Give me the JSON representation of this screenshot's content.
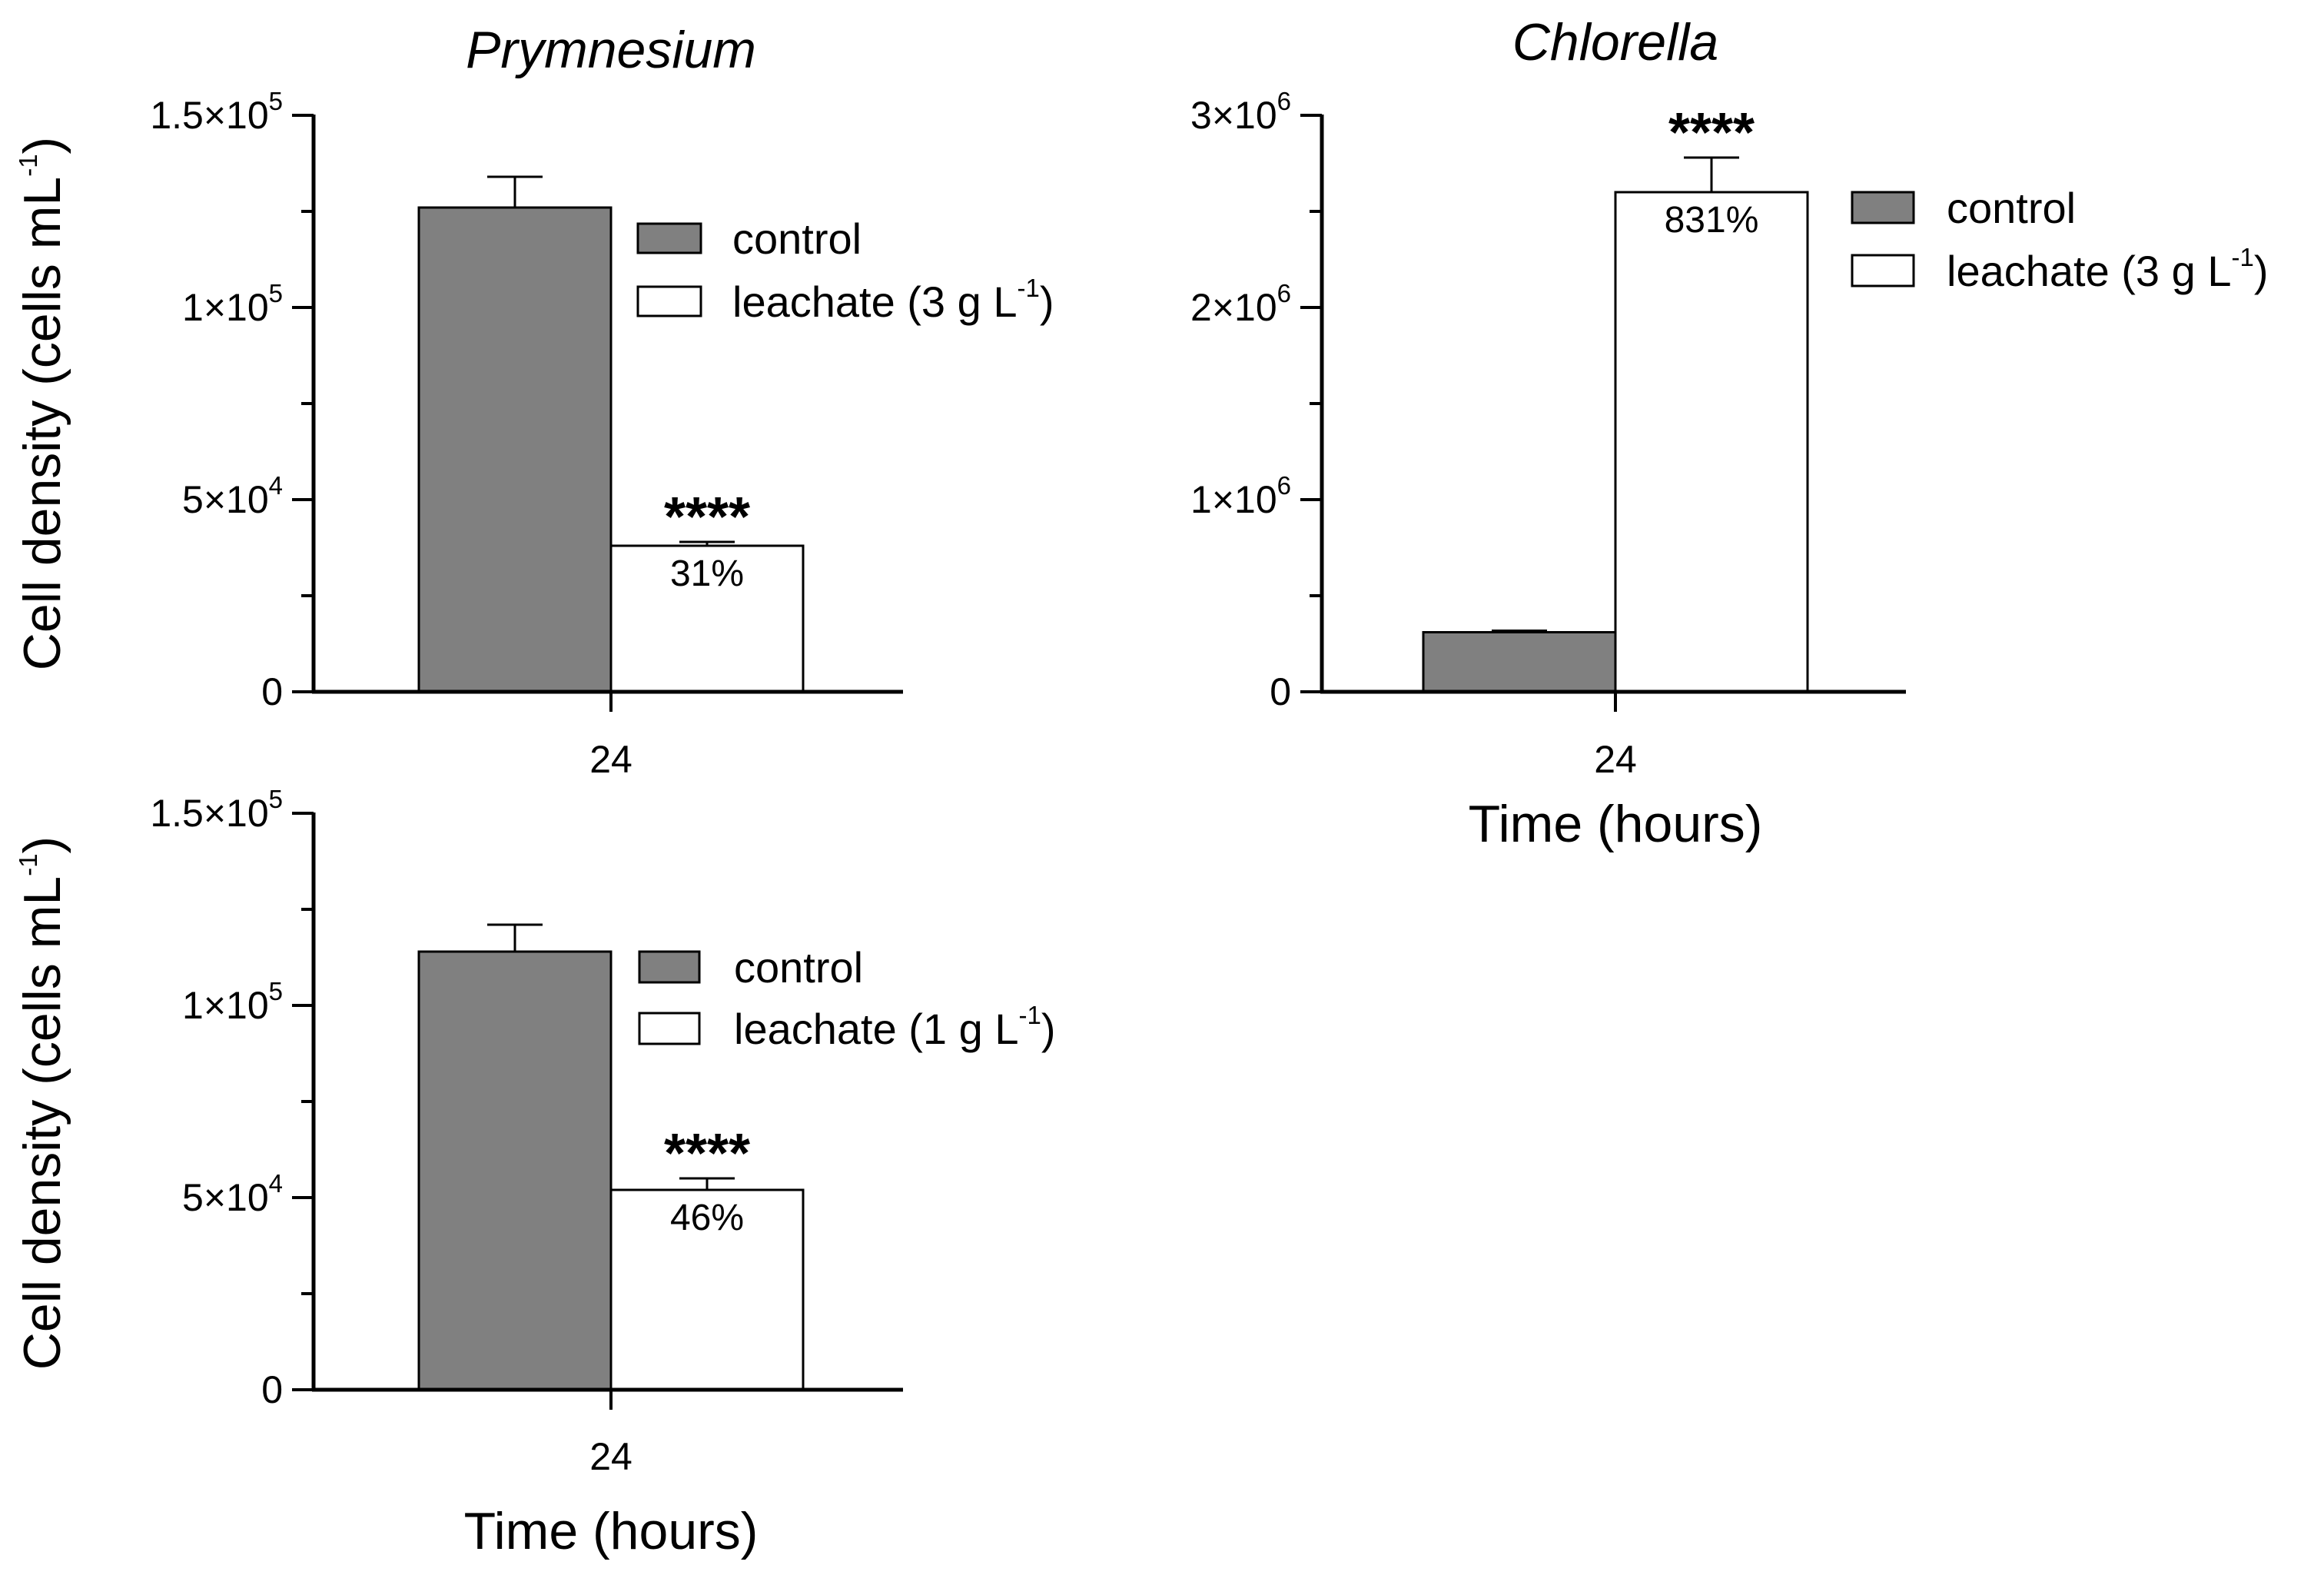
{
  "chart_data": [
    {
      "type": "bar",
      "title": "Prymnesium",
      "xlabel": "",
      "ylabel": "Cell density (cells mL",
      "ylabel_exp": "-1",
      "ylabel_close": ")",
      "categories": [
        "24"
      ],
      "ylim": [
        0,
        150000
      ],
      "yticks": [
        {
          "value": 0,
          "mant": "0",
          "exp": ""
        },
        {
          "value": 50000,
          "mant": "5×10",
          "exp": "4"
        },
        {
          "value": 100000,
          "mant": "1×10",
          "exp": "5"
        },
        {
          "value": 150000,
          "mant": "1.5×10",
          "exp": "5"
        }
      ],
      "series": [
        {
          "name": "control",
          "legend": "control",
          "legend_exp": "",
          "legend_close": "",
          "values": [
            126000
          ],
          "error": [
            8000
          ],
          "color": "#808080"
        },
        {
          "name": "leachate (3 g L-1)",
          "legend": "leachate (3 g L",
          "legend_exp": "-1",
          "legend_close": ")",
          "values": [
            38000
          ],
          "error": [
            1000
          ],
          "color": "#ffffff",
          "annotation": "31%",
          "significance": "****"
        }
      ]
    },
    {
      "type": "bar",
      "title": "Chlorella",
      "xlabel": "Time (hours)",
      "ylabel": "",
      "ylabel_exp": "",
      "ylabel_close": "",
      "categories": [
        "24"
      ],
      "ylim": [
        0,
        3000000
      ],
      "yticks": [
        {
          "value": 0,
          "mant": "0",
          "exp": ""
        },
        {
          "value": 1000000,
          "mant": "1×10",
          "exp": "6"
        },
        {
          "value": 2000000,
          "mant": "2×10",
          "exp": "6"
        },
        {
          "value": 3000000,
          "mant": "3×10",
          "exp": "6"
        }
      ],
      "series": [
        {
          "name": "control",
          "legend": "control",
          "legend_exp": "",
          "legend_close": "",
          "values": [
            310000
          ],
          "error": [
            8000
          ],
          "color": "#808080"
        },
        {
          "name": "leachate (3 g L-1)",
          "legend": "leachate (3 g L",
          "legend_exp": "-1",
          "legend_close": ")",
          "values": [
            2600000
          ],
          "error": [
            180000
          ],
          "color": "#ffffff",
          "annotation": "831%",
          "significance": "****"
        }
      ]
    },
    {
      "type": "bar",
      "title": "",
      "xlabel": "Time (hours)",
      "ylabel": "Cell density (cells mL",
      "ylabel_exp": "-1",
      "ylabel_close": ")",
      "categories": [
        "24"
      ],
      "ylim": [
        0,
        150000
      ],
      "yticks": [
        {
          "value": 0,
          "mant": "0",
          "exp": ""
        },
        {
          "value": 50000,
          "mant": "5×10",
          "exp": "4"
        },
        {
          "value": 100000,
          "mant": "1×10",
          "exp": "5"
        },
        {
          "value": 150000,
          "mant": "1.5×10",
          "exp": "5"
        }
      ],
      "series": [
        {
          "name": "control",
          "legend": "control",
          "legend_exp": "",
          "legend_close": "",
          "values": [
            114000
          ],
          "error": [
            7000
          ],
          "color": "#808080"
        },
        {
          "name": "leachate (1 g L-1)",
          "legend": "leachate (1 g L",
          "legend_exp": "-1",
          "legend_close": ")",
          "values": [
            52000
          ],
          "error": [
            3000
          ],
          "color": "#ffffff",
          "annotation": "46%",
          "significance": "****"
        }
      ]
    }
  ]
}
